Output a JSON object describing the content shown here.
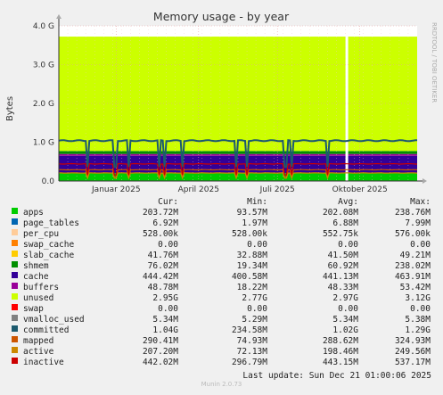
{
  "chart_data": {
    "type": "area",
    "title": "Memory usage - by year",
    "ylabel": "Bytes",
    "watermark": "RRDTOOL / TOBI OETIKER",
    "y_ticks": [
      "0.0",
      "1.0 G",
      "2.0 G",
      "3.0 G",
      "4.0 G"
    ],
    "ylim": [
      0,
      4
    ],
    "y_unit": "G",
    "x_ticks": [
      "Januar 2025",
      "April 2025",
      "Juli 2025",
      "Oktober 2025"
    ],
    "grid": true,
    "gap_position_fraction": 0.8,
    "layers": [
      {
        "name": "apps",
        "value": 0.204,
        "color": "#00cc00"
      },
      {
        "name": "cache",
        "value": 0.444,
        "color": "#330099"
      },
      {
        "name": "buffers",
        "value": 0.049,
        "color": "#990099"
      },
      {
        "name": "shmem",
        "value": 0.076,
        "color": "#008f00"
      },
      {
        "name": "unused",
        "value": 2.95,
        "color": "#ccff00"
      }
    ],
    "lines": [
      {
        "name": "committed",
        "value": 1.04,
        "color": "#1c5a6e"
      },
      {
        "name": "mapped",
        "value": 0.29,
        "color": "#cc5500"
      },
      {
        "name": "active",
        "value": 0.207,
        "color": "#cc8800"
      },
      {
        "name": "inactive",
        "value": 0.442,
        "color": "#cc0000"
      }
    ],
    "dips": [
      0.32,
      0.63,
      0.78,
      1.12,
      1.18,
      1.38,
      1.98,
      2.1,
      2.53,
      2.6,
      3.0
    ]
  },
  "legend": {
    "headers": {
      "cur": "Cur:",
      "min": "Min:",
      "avg": "Avg:",
      "max": "Max:"
    },
    "rows": [
      {
        "name": "apps",
        "cur": "203.72M",
        "min": "93.57M",
        "avg": "202.08M",
        "max": "238.76M",
        "color": "#00cc00"
      },
      {
        "name": "page_tables",
        "cur": "6.92M",
        "min": "1.97M",
        "avg": "6.88M",
        "max": "7.99M",
        "color": "#0066b3"
      },
      {
        "name": "per_cpu",
        "cur": "528.00k",
        "min": "528.00k",
        "avg": "552.75k",
        "max": "576.00k",
        "color": "#ffcc99"
      },
      {
        "name": "swap_cache",
        "cur": "0.00",
        "min": "0.00",
        "avg": "0.00",
        "max": "0.00",
        "color": "#ff8000"
      },
      {
        "name": "slab_cache",
        "cur": "41.76M",
        "min": "32.88M",
        "avg": "41.50M",
        "max": "49.21M",
        "color": "#ffcc00"
      },
      {
        "name": "shmem",
        "cur": "76.02M",
        "min": "19.34M",
        "avg": "60.92M",
        "max": "238.02M",
        "color": "#008f00"
      },
      {
        "name": "cache",
        "cur": "444.42M",
        "min": "400.58M",
        "avg": "441.13M",
        "max": "463.91M",
        "color": "#330099"
      },
      {
        "name": "buffers",
        "cur": "48.78M",
        "min": "18.22M",
        "avg": "48.33M",
        "max": "53.42M",
        "color": "#990099"
      },
      {
        "name": "unused",
        "cur": "2.95G",
        "min": "2.77G",
        "avg": "2.97G",
        "max": "3.12G",
        "color": "#ccff00"
      },
      {
        "name": "swap",
        "cur": "0.00",
        "min": "0.00",
        "avg": "0.00",
        "max": "0.00",
        "color": "#ff0000"
      },
      {
        "name": "vmalloc_used",
        "cur": "5.34M",
        "min": "5.29M",
        "avg": "5.34M",
        "max": "5.38M",
        "color": "#808080"
      },
      {
        "name": "committed",
        "cur": "1.04G",
        "min": "234.58M",
        "avg": "1.02G",
        "max": "1.29G",
        "color": "#1c5a6e"
      },
      {
        "name": "mapped",
        "cur": "290.41M",
        "min": "74.93M",
        "avg": "288.62M",
        "max": "324.93M",
        "color": "#cc5500"
      },
      {
        "name": "active",
        "cur": "207.20M",
        "min": "72.13M",
        "avg": "198.46M",
        "max": "249.56M",
        "color": "#cc8800"
      },
      {
        "name": "inactive",
        "cur": "442.02M",
        "min": "296.79M",
        "avg": "443.15M",
        "max": "537.17M",
        "color": "#cc0000"
      }
    ]
  },
  "last_update": "Last update: Sun Dec 21 01:00:06 2025",
  "footer": "Munin 2.0.73"
}
